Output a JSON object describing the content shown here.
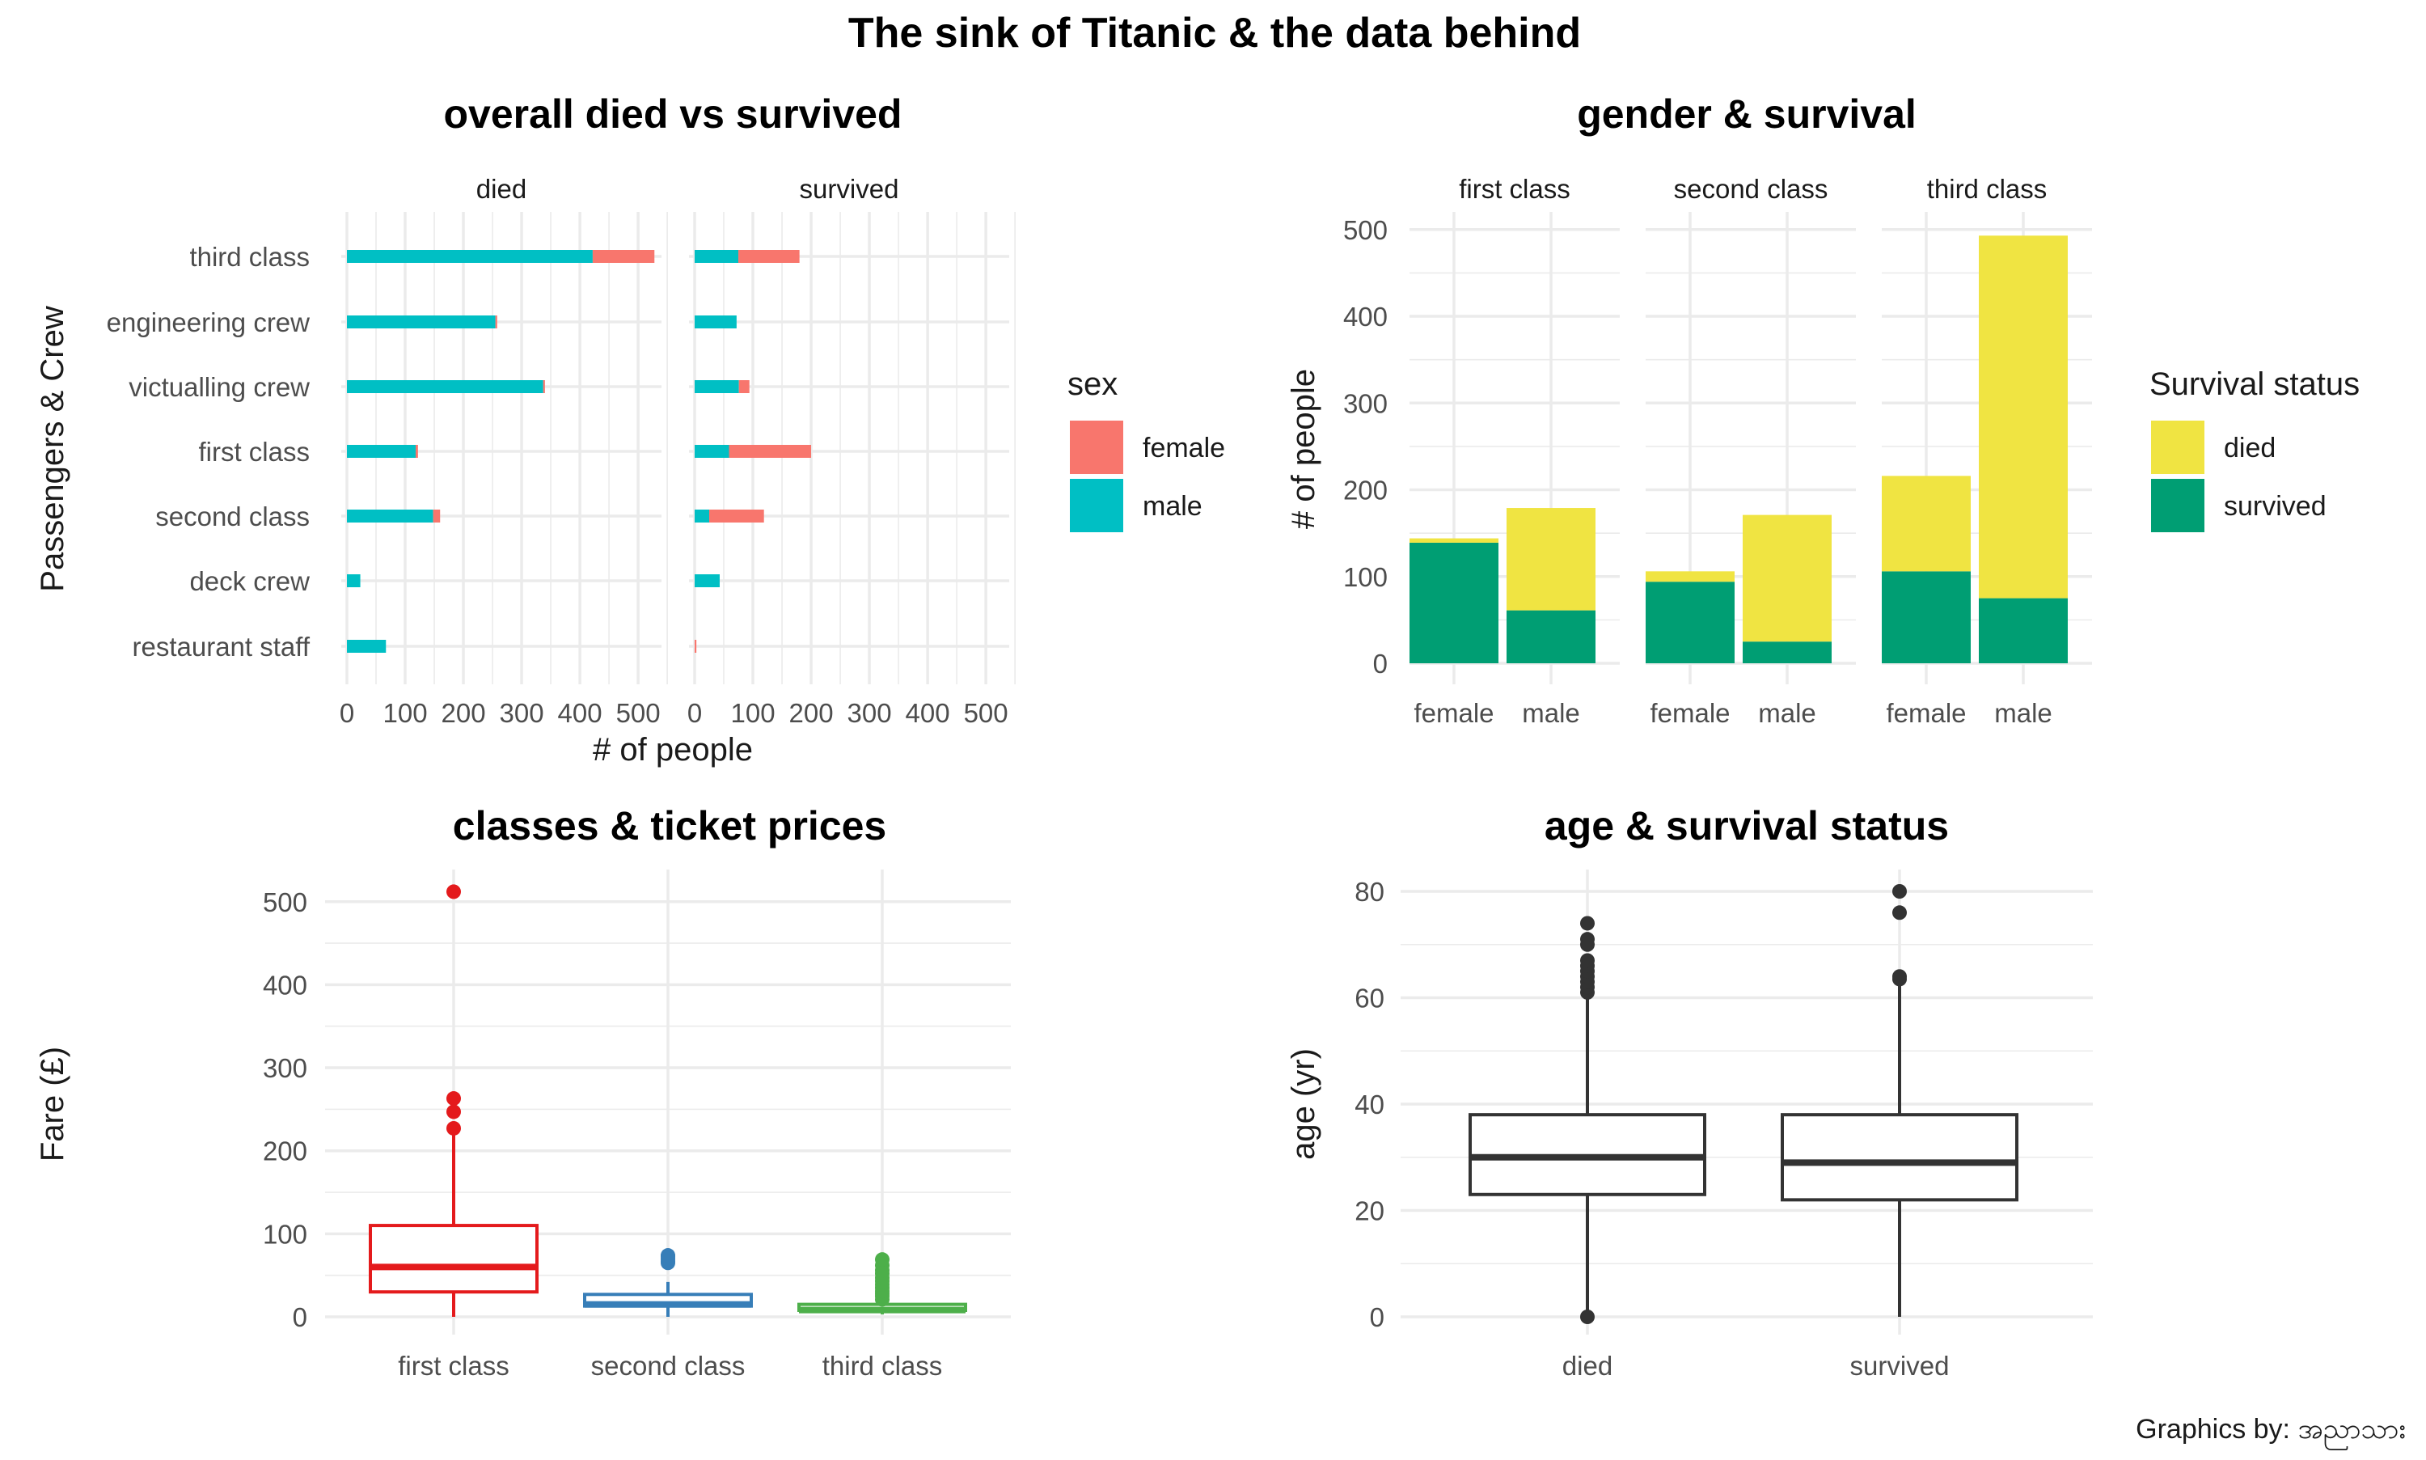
{
  "title": "The sink of Titanic & the data behind",
  "caption": "Graphics by: အညာသား",
  "colors": {
    "female": "#F8766D",
    "male": "#00BFC4",
    "died": "#F0E442",
    "survived": "#009E73",
    "first_class": "#E41A1C",
    "second_class": "#377EB8",
    "third_class": "#4DAF4A",
    "box_dark": "#333333"
  },
  "chart_data": [
    {
      "id": "overall",
      "type": "bar",
      "title": "overall died vs survived",
      "xlabel": "# of people",
      "ylabel": "Passengers & Crew",
      "xlim": [
        0,
        560
      ],
      "xticks": [
        0,
        100,
        200,
        300,
        400,
        500
      ],
      "facets": [
        "died",
        "survived"
      ],
      "categories": [
        "third class",
        "engineering crew",
        "victualling crew",
        "first class",
        "second class",
        "deck crew",
        "restaurant staff"
      ],
      "legend": {
        "title": "sex",
        "position": "right",
        "items": [
          "female",
          "male"
        ]
      },
      "series": [
        {
          "name": "male",
          "died": [
            422,
            255,
            337,
            118,
            148,
            23,
            67
          ],
          "survived": [
            75,
            72,
            76,
            59,
            25,
            43,
            0
          ]
        },
        {
          "name": "female",
          "died": [
            106,
            3,
            3,
            4,
            12,
            0,
            0
          ],
          "survived": [
            105,
            0,
            18,
            141,
            94,
            0,
            3
          ]
        }
      ]
    },
    {
      "id": "gender",
      "type": "bar",
      "title": "gender & survival",
      "ylabel": "# of people",
      "ylim": [
        0,
        520
      ],
      "yticks": [
        0,
        100,
        200,
        300,
        400,
        500
      ],
      "facets": [
        "first class",
        "second class",
        "third class"
      ],
      "categories": [
        "female",
        "male"
      ],
      "legend": {
        "title": "Survival status",
        "position": "right",
        "items": [
          "died",
          "survived"
        ]
      },
      "series": [
        {
          "name": "survived",
          "first class": [
            139,
            61
          ],
          "second class": [
            94,
            25
          ],
          "third class": [
            106,
            75
          ]
        },
        {
          "name": "died",
          "first class": [
            5,
            118
          ],
          "second class": [
            12,
            146
          ],
          "third class": [
            110,
            418
          ]
        }
      ]
    },
    {
      "id": "fares",
      "type": "box",
      "title": "classes & ticket prices",
      "ylabel": "Fare (£)",
      "ylim": [
        0,
        525
      ],
      "yticks": [
        0,
        100,
        200,
        300,
        400,
        500
      ],
      "categories": [
        "first class",
        "second class",
        "third class"
      ],
      "boxes": [
        {
          "q1": 30,
          "median": 60,
          "q3": 110,
          "lower": 0,
          "upper": 227,
          "outliers": [
            227,
            247,
            263,
            512
          ]
        },
        {
          "q1": 13,
          "median": 15,
          "q3": 27,
          "lower": 0,
          "upper": 42,
          "outliers": [
            65,
            67,
            70,
            73,
            74
          ]
        },
        {
          "q1": 7.8,
          "median": 8.1,
          "q3": 15,
          "lower": 3,
          "upper": 16,
          "outliers": [
            21,
            25,
            28,
            31,
            35,
            39,
            43,
            47,
            52,
            56,
            62,
            69
          ]
        }
      ]
    },
    {
      "id": "age",
      "type": "box",
      "title": "age & survival status",
      "ylabel": "age (yr)",
      "ylim": [
        0,
        82
      ],
      "yticks": [
        0,
        20,
        40,
        60,
        80
      ],
      "categories": [
        "died",
        "survived"
      ],
      "boxes": [
        {
          "q1": 23,
          "median": 30,
          "q3": 38,
          "lower": 0,
          "upper": 61,
          "outliers": [
            0,
            61,
            62,
            63,
            64,
            65,
            66,
            67,
            70,
            71,
            74
          ]
        },
        {
          "q1": 22,
          "median": 29,
          "q3": 38,
          "lower": 0,
          "upper": 63,
          "outliers": [
            63.5,
            64,
            76,
            80
          ]
        }
      ]
    }
  ]
}
